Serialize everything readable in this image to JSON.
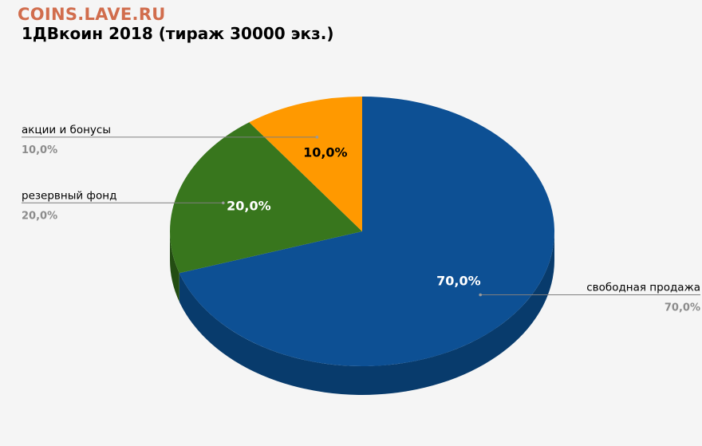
{
  "watermark": "COINS.LAVE.RU",
  "chart_data": {
    "type": "pie",
    "title": "1ДВкоин 2018 (тираж 30000 экз.)",
    "categories": [
      "свободная продажа",
      "резервный фонд",
      "акции и бонусы"
    ],
    "values": [
      70,
      20,
      10
    ],
    "value_labels": [
      "70,0%",
      "20,0%",
      "10,0%"
    ],
    "colors": [
      "#0d5094",
      "#38761d",
      "#ff9900"
    ],
    "side_colors": [
      "#083b6c",
      "#234d12",
      "#a86400"
    ],
    "inside_label_colors": [
      "#ffffff",
      "#ffffff",
      "#000000"
    ],
    "legend": "callouts"
  }
}
